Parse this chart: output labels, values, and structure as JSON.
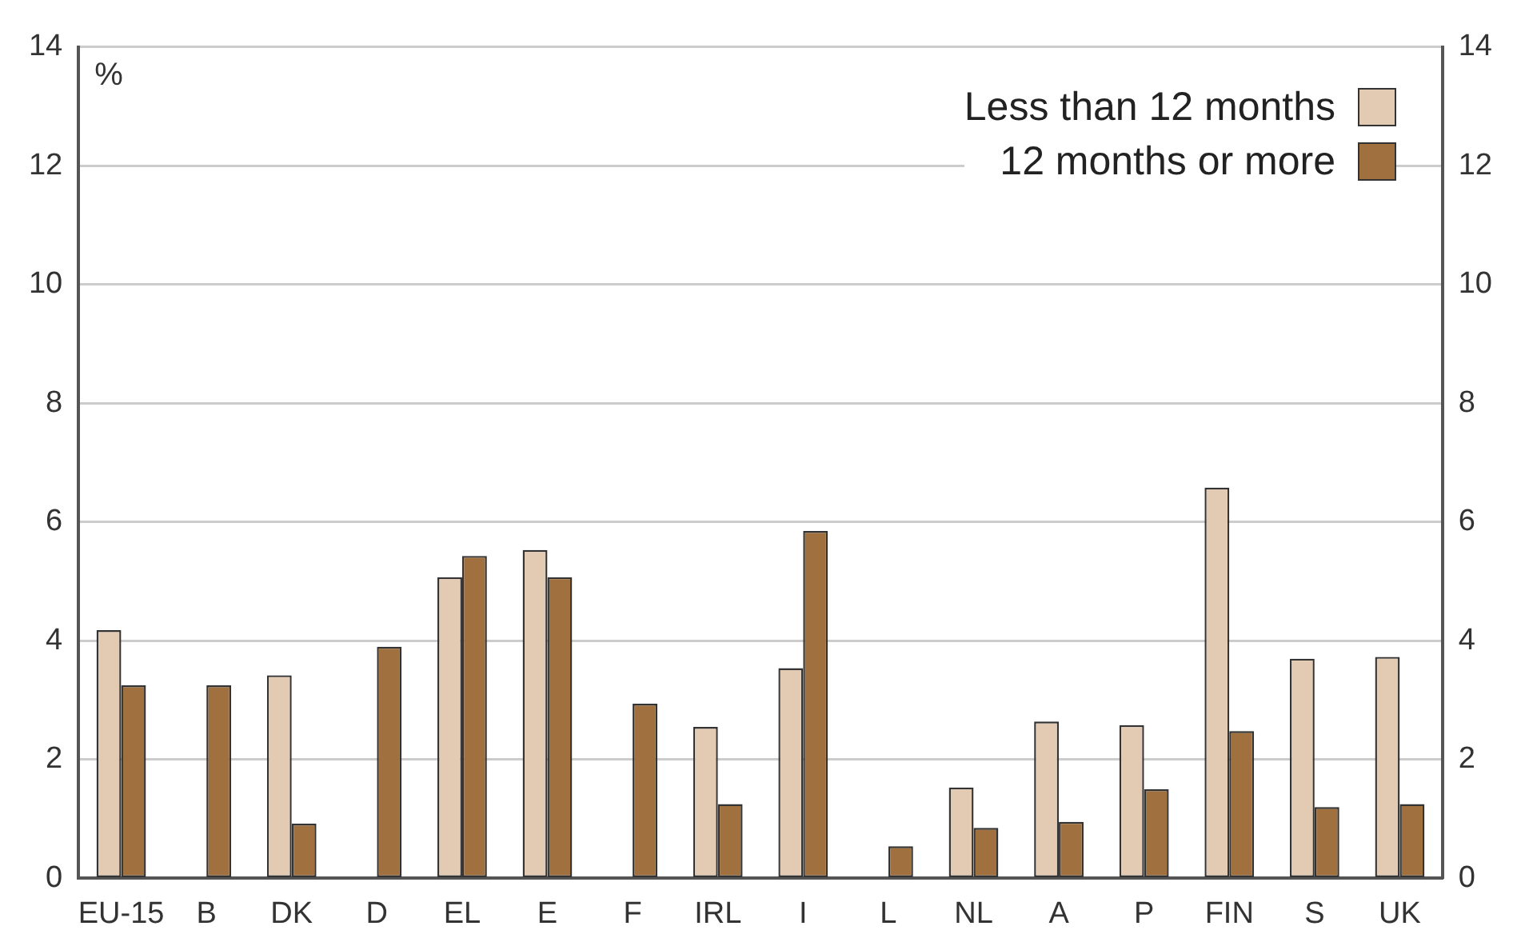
{
  "chart_data": {
    "type": "bar",
    "categories": [
      "EU-15",
      "B",
      "DK",
      "D",
      "EL",
      "E",
      "F",
      "IRL",
      "I",
      "L",
      "NL",
      "A",
      "P",
      "FIN",
      "S",
      "UK"
    ],
    "series": [
      {
        "name": "Less than 12 months",
        "color": "#e3cab2",
        "values": [
          4.18,
          null,
          3.42,
          null,
          5.07,
          5.53,
          null,
          2.55,
          3.54,
          null,
          1.53,
          2.64,
          2.58,
          6.58,
          3.7,
          3.73
        ]
      },
      {
        "name": "12 months or more",
        "color": "#a0703e",
        "values": [
          3.25,
          3.25,
          0.92,
          3.9,
          5.43,
          5.07,
          2.94,
          1.25,
          5.85,
          0.54,
          0.85,
          0.95,
          1.5,
          2.48,
          1.2,
          1.25
        ]
      }
    ],
    "ylim": [
      0,
      14
    ],
    "yticks": [
      0,
      2,
      4,
      6,
      8,
      10,
      12,
      14
    ],
    "y2lim": [
      0,
      14
    ],
    "y2ticks": [
      0,
      2,
      4,
      6,
      8,
      10,
      12,
      14
    ],
    "annotations": [
      "%"
    ],
    "grid": "y",
    "legend": "top right"
  }
}
